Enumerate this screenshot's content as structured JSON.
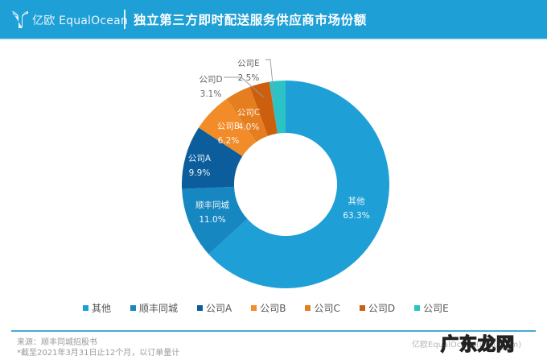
{
  "header": {
    "brand_cn": "亿欧",
    "brand_en": "EqualOcean",
    "title": "独立第三方即时配送服务供应商市场份额",
    "background_color": "#1e9fd6"
  },
  "chart_data": {
    "type": "pie",
    "subtype": "donut",
    "title": "独立第三方即时配送服务供应商市场份额",
    "start_angle": "12 o'clock, clockwise",
    "categories": [
      "其他",
      "顺丰同城",
      "公司A",
      "公司B",
      "公司C",
      "公司D",
      "公司E"
    ],
    "values": [
      63.3,
      11.0,
      9.9,
      6.2,
      4.0,
      3.1,
      2.5
    ],
    "labels": [
      "63.3%",
      "11.0%",
      "9.9%",
      "6.2%",
      "4.0%",
      "3.1%",
      "2.5%"
    ],
    "colors": [
      "#1e9fd6",
      "#1687c0",
      "#0b5d9b",
      "#f28c28",
      "#e57e1f",
      "#cc5f0e",
      "#2bc3c5"
    ],
    "legend_position": "bottom",
    "center": [
      355,
      229
    ],
    "outer_radius": 129,
    "inner_radius": 64
  },
  "legend": {
    "items": [
      {
        "label": "其他",
        "color": "#1e9fd6"
      },
      {
        "label": "顺丰同城",
        "color": "#1687c0"
      },
      {
        "label": "公司A",
        "color": "#0b5d9b"
      },
      {
        "label": "公司B",
        "color": "#f28c28"
      },
      {
        "label": "公司C",
        "color": "#e57e1f"
      },
      {
        "label": "公司D",
        "color": "#cc5f0e"
      },
      {
        "label": "公司E",
        "color": "#2bc3c5"
      }
    ]
  },
  "footer": {
    "source": "来源：顺丰同城招股书",
    "note": "*截至2021年3月31日止12个月，以订单量计",
    "brand": "亿欧EqualOcean(iyiou.com)",
    "watermark": "广东龙网"
  }
}
